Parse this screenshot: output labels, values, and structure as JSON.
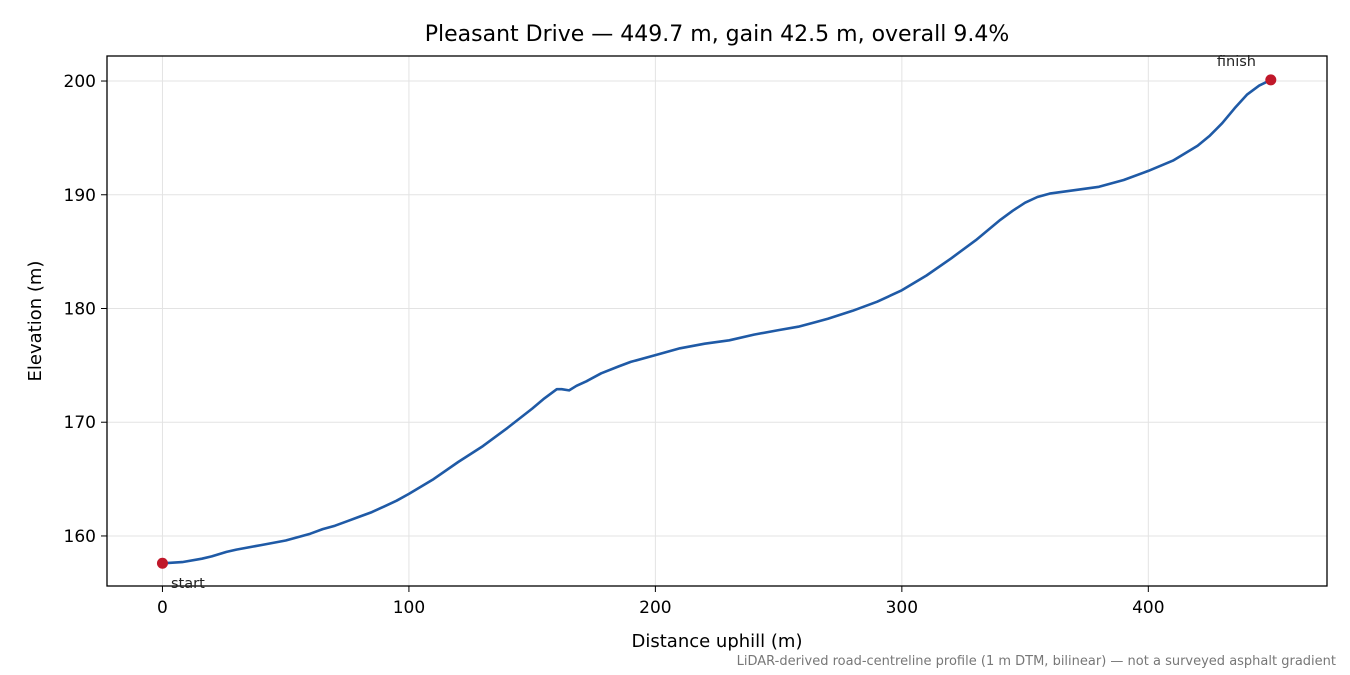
{
  "chart_data": {
    "type": "line",
    "title": "Pleasant Drive — 449.7 m, gain 42.5 m, overall 9.4%",
    "xlabel": "Distance uphill (m)",
    "ylabel": "Elevation (m)",
    "xlim": [
      -22.5,
      472.5
    ],
    "ylim": [
      155.6,
      202.2
    ],
    "xticks": [
      0,
      100,
      200,
      300,
      400
    ],
    "yticks": [
      160,
      170,
      180,
      190,
      200
    ],
    "xtick_labels": [
      "0",
      "100",
      "200",
      "300",
      "400"
    ],
    "ytick_labels": [
      "160",
      "170",
      "180",
      "190",
      "200"
    ],
    "grid": true,
    "footnote": "LiDAR-derived road-centreline profile (1 m DTM, bilinear) — not a surveyed asphalt gradient",
    "colors": {
      "line": "#1f5aa6",
      "marker": "#c0182a",
      "grid": "#e3e3e3",
      "footnote": "#777777"
    },
    "series": [
      {
        "x": [
          0,
          8,
          16,
          20,
          26,
          30,
          40,
          50,
          55,
          60,
          65,
          70,
          75,
          80,
          85,
          90,
          95,
          100,
          110,
          120,
          130,
          140,
          150,
          155,
          160,
          162,
          165,
          168,
          172,
          178,
          185,
          190,
          200,
          210,
          220,
          230,
          240,
          250,
          258,
          265,
          270,
          280,
          290,
          300,
          310,
          320,
          330,
          340,
          345,
          350,
          355,
          360,
          370,
          380,
          390,
          400,
          410,
          420,
          425,
          430,
          435,
          440,
          445,
          449.7
        ],
        "y": [
          157.6,
          157.7,
          158.0,
          158.2,
          158.6,
          158.8,
          159.2,
          159.6,
          159.9,
          160.2,
          160.6,
          160.9,
          161.3,
          161.7,
          162.1,
          162.6,
          163.1,
          163.7,
          165.0,
          166.5,
          167.9,
          169.5,
          171.2,
          172.1,
          172.9,
          172.9,
          172.8,
          173.2,
          173.6,
          174.3,
          174.9,
          175.3,
          175.9,
          176.5,
          176.9,
          177.2,
          177.7,
          178.1,
          178.4,
          178.8,
          179.1,
          179.8,
          180.6,
          181.6,
          182.9,
          184.4,
          186.0,
          187.8,
          188.6,
          189.3,
          189.8,
          190.1,
          190.4,
          190.7,
          191.3,
          192.1,
          193.0,
          194.3,
          195.2,
          196.3,
          197.6,
          198.8,
          199.6,
          200.1
        ]
      }
    ],
    "annotations": [
      {
        "text": "start",
        "x": 0,
        "y": 157.6
      },
      {
        "text": "finish",
        "x": 449.7,
        "y": 200.1
      }
    ]
  }
}
